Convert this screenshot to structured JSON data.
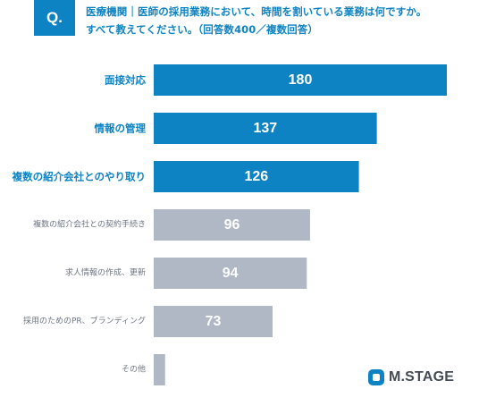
{
  "question": {
    "badge": "Q.",
    "line1": "医療機関｜医師の採用業務において、時間を割いている業務は何ですか。",
    "line2": "すべて教えてください。（回答数400／複数回答）"
  },
  "logo": {
    "text": "M.STAGE",
    "color": "#0e83c3"
  },
  "colors": {
    "highlight": "#0e83c3",
    "muted": "#b0b8c6",
    "highlight_label": "#0e83c3",
    "muted_label": "#6d7583"
  },
  "chart_data": {
    "type": "bar",
    "orientation": "horizontal",
    "categories": [
      "面接対応",
      "情報の管理",
      "複数の紹介会社とのやり取り",
      "複数の紹介会社との契約手続き",
      "求人情報の作成、更新",
      "採用のためのPR、ブランディング",
      "その他"
    ],
    "values": [
      180,
      137,
      126,
      96,
      94,
      73,
      7
    ],
    "highlighted": [
      true,
      true,
      true,
      false,
      false,
      false,
      false
    ],
    "xlim": [
      0,
      190
    ],
    "grid": false,
    "legend": "none"
  }
}
